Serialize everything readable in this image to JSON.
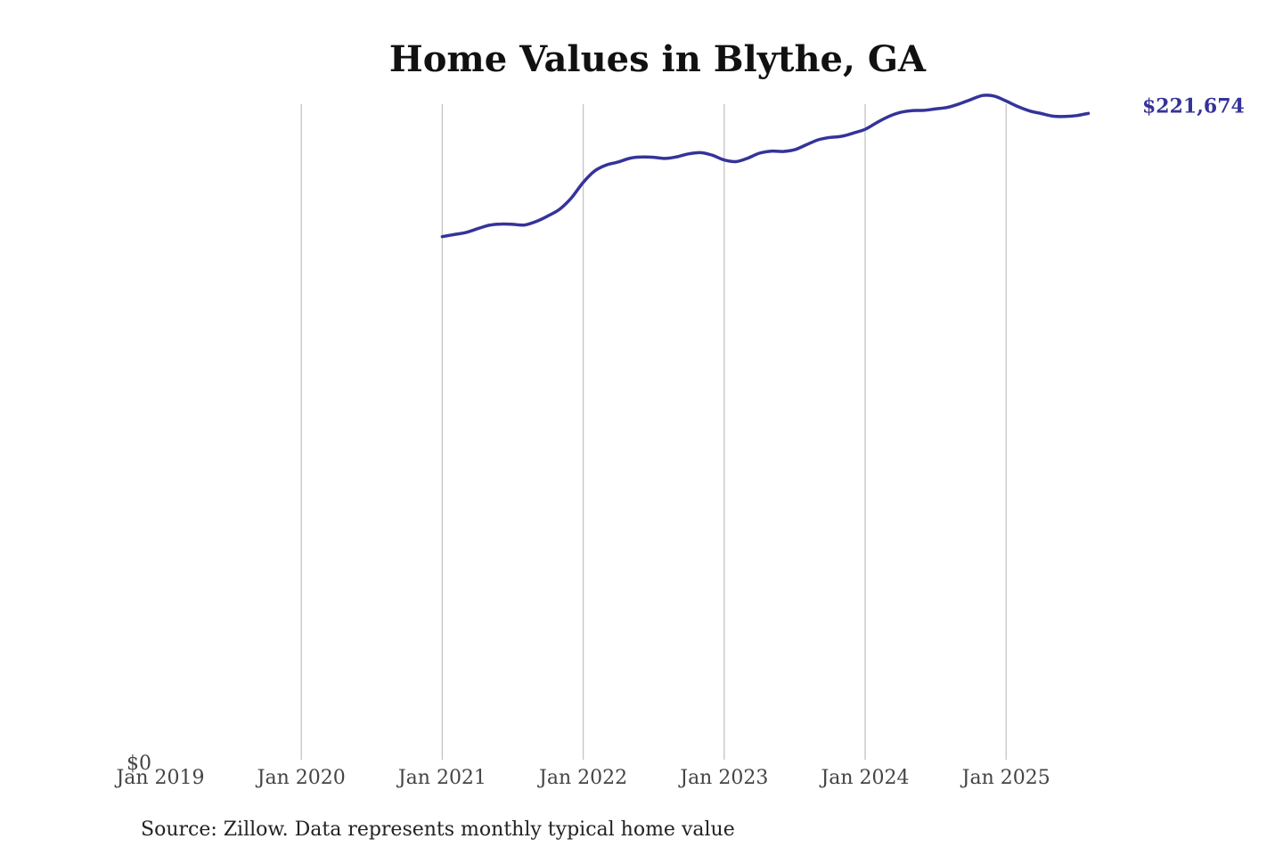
{
  "chart_data": {
    "type": "line",
    "title": "Home Values in Blythe, GA",
    "xlabel": "",
    "ylabel": "",
    "x_ticks": [
      "Jan 2019",
      "Jan 2020",
      "Jan 2021",
      "Jan 2022",
      "Jan 2023",
      "Jan 2024",
      "Jan 2025"
    ],
    "y_ticks": [
      {
        "value": 0,
        "label": "$0"
      }
    ],
    "ylim": [
      0,
      230000
    ],
    "grid": "vertical",
    "line_color": "#35339a",
    "end_label": "$221,674",
    "source": "Source: Zillow. Data represents monthly typical home value",
    "series": [
      {
        "points": [
          [
            "2021-01",
            179400
          ],
          [
            "2021-02",
            180100
          ],
          [
            "2021-03",
            180800
          ],
          [
            "2021-04",
            182100
          ],
          [
            "2021-05",
            183300
          ],
          [
            "2021-06",
            183700
          ],
          [
            "2021-07",
            183600
          ],
          [
            "2021-08",
            183400
          ],
          [
            "2021-09",
            184600
          ],
          [
            "2021-10",
            186500
          ],
          [
            "2021-11",
            188800
          ],
          [
            "2021-12",
            192700
          ],
          [
            "2022-01",
            198000
          ],
          [
            "2022-02",
            202000
          ],
          [
            "2022-03",
            204000
          ],
          [
            "2022-04",
            205000
          ],
          [
            "2022-05",
            206300
          ],
          [
            "2022-06",
            206700
          ],
          [
            "2022-07",
            206600
          ],
          [
            "2022-08",
            206200
          ],
          [
            "2022-09",
            206800
          ],
          [
            "2022-10",
            207800
          ],
          [
            "2022-11",
            208200
          ],
          [
            "2022-12",
            207300
          ],
          [
            "2023-01",
            205700
          ],
          [
            "2023-02",
            205100
          ],
          [
            "2023-03",
            206300
          ],
          [
            "2023-04",
            208000
          ],
          [
            "2023-05",
            208700
          ],
          [
            "2023-06",
            208600
          ],
          [
            "2023-07",
            209200
          ],
          [
            "2023-08",
            210900
          ],
          [
            "2023-09",
            212600
          ],
          [
            "2023-10",
            213400
          ],
          [
            "2023-11",
            213800
          ],
          [
            "2023-12",
            214900
          ],
          [
            "2024-01",
            216200
          ],
          [
            "2024-02",
            218500
          ],
          [
            "2024-03",
            220600
          ],
          [
            "2024-04",
            222000
          ],
          [
            "2024-05",
            222600
          ],
          [
            "2024-06",
            222700
          ],
          [
            "2024-07",
            223200
          ],
          [
            "2024-08",
            223700
          ],
          [
            "2024-09",
            224900
          ],
          [
            "2024-10",
            226400
          ],
          [
            "2024-11",
            227800
          ],
          [
            "2024-12",
            227600
          ],
          [
            "2025-01",
            225900
          ],
          [
            "2025-02",
            224000
          ],
          [
            "2025-03",
            222500
          ],
          [
            "2025-04",
            221600
          ],
          [
            "2025-05",
            220700
          ],
          [
            "2025-06",
            220600
          ],
          [
            "2025-07",
            220900
          ],
          [
            "2025-08",
            221674
          ]
        ]
      }
    ]
  }
}
